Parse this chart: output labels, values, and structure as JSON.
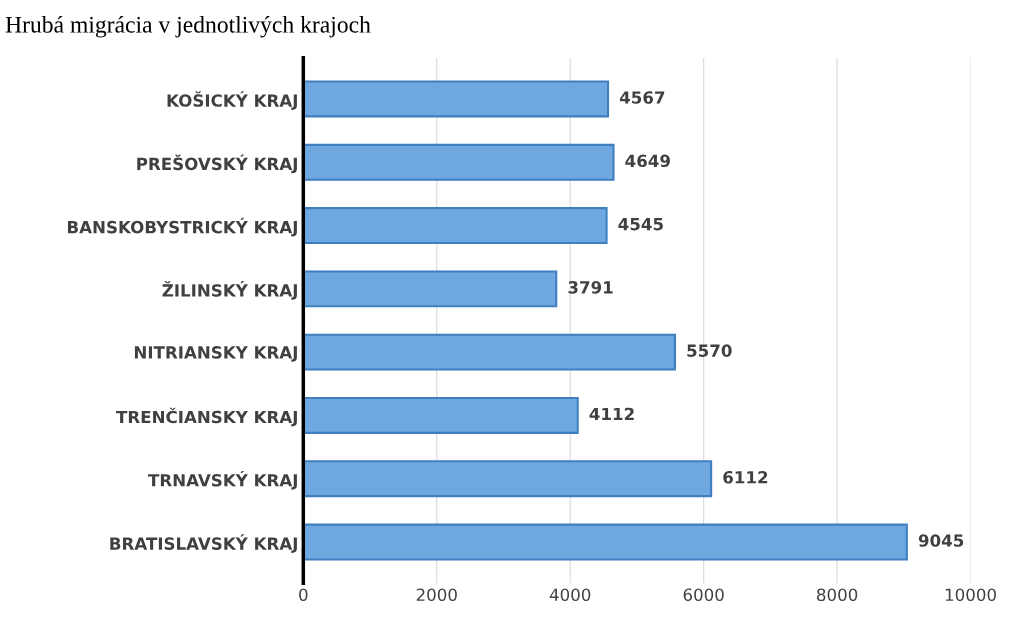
{
  "chart_data": {
    "type": "bar",
    "orientation": "horizontal",
    "title": "Hrubá migrácia v jednotlivých krajoch",
    "categories": [
      "KOŠICKÝ KRAJ",
      "PREŠOVSKÝ KRAJ",
      "BANSKOBYSTRICKÝ KRAJ",
      "ŽILINSKÝ KRAJ",
      "NITRIANSKY KRAJ",
      "TRENČIANSKY KRAJ",
      "TRNAVSKÝ KRAJ",
      "BRATISLAVSKÝ KRAJ"
    ],
    "values": [
      4567,
      4649,
      4545,
      3791,
      5570,
      4112,
      6112,
      9045
    ],
    "color": "#6fa8e0",
    "xlim": [
      0,
      10000
    ],
    "xticks": [
      0,
      2000,
      4000,
      6000,
      8000,
      10000
    ],
    "grid": "x",
    "data_labels": true
  }
}
